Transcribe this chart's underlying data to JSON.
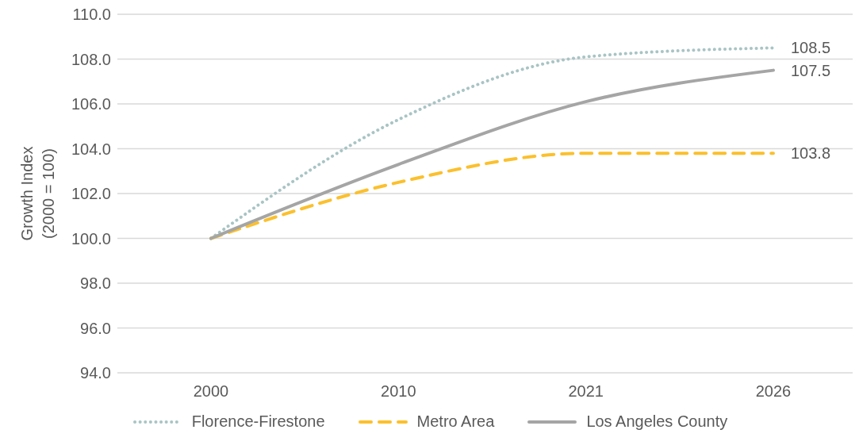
{
  "chart_data": {
    "type": "line",
    "ylabel": "Growth Index\n(2000 = 100)",
    "categories": [
      "2000",
      "2010",
      "2021",
      "2026"
    ],
    "series": [
      {
        "name": "Florence-Firestone",
        "color": "#a9c4c4",
        "line_style": "dotted",
        "values": [
          100,
          105.3,
          108.1,
          108.5
        ],
        "value_labels": [
          null,
          null,
          null,
          "108.5"
        ]
      },
      {
        "name": "Metro Area",
        "color": "#fbc02d",
        "line_style": "dashed",
        "values": [
          100,
          102.5,
          103.8,
          103.8
        ],
        "value_labels": [
          null,
          null,
          null,
          "103.8"
        ]
      },
      {
        "name": "Los Angeles County",
        "color": "#a5a5a5",
        "line_style": "solid",
        "values": [
          100,
          103.3,
          106.1,
          107.5
        ],
        "value_labels": [
          null,
          null,
          null,
          "107.5"
        ]
      }
    ],
    "ylim": [
      94,
      110
    ],
    "yticks": [
      {
        "value": 94,
        "label": "94.0"
      },
      {
        "value": 96,
        "label": "96.0"
      },
      {
        "value": 98,
        "label": "98.0"
      },
      {
        "value": 100,
        "label": "100.0"
      },
      {
        "value": 102,
        "label": "102.0"
      },
      {
        "value": 104,
        "label": "104.0"
      },
      {
        "value": 106,
        "label": "106.0"
      },
      {
        "value": 108,
        "label": "108.0"
      },
      {
        "value": 110,
        "label": "110.0"
      }
    ],
    "grid": "y",
    "legend": "bottom",
    "marker": "none"
  }
}
